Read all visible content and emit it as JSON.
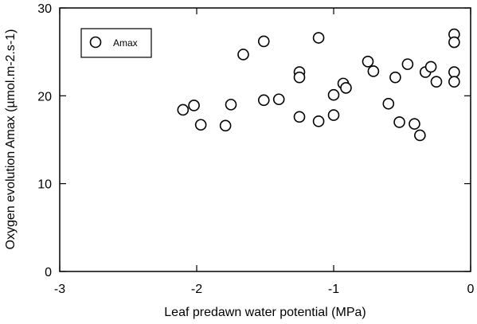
{
  "chart_data": {
    "type": "scatter",
    "xlabel": "Leaf predawn water potential (MPa)",
    "ylabel": "Oxygen evolution Amax (µmol.m-2.s-1)",
    "xlim": [
      -3,
      0
    ],
    "ylim": [
      0,
      30
    ],
    "xticks": [
      -3,
      -2,
      -1,
      0
    ],
    "yticks": [
      0,
      10,
      20,
      30
    ],
    "xtick_labels": [
      "-3",
      "-2",
      "-1",
      "0"
    ],
    "ytick_labels": [
      "0",
      "10",
      "20",
      "30"
    ],
    "grid": false,
    "legend_position": "top-left",
    "marker": "open-circle",
    "colors": {
      "marker_stroke": "#000000",
      "axis": "#000000",
      "background": "#ffffff"
    },
    "series": [
      {
        "name": "Amax",
        "points": [
          [
            -2.1,
            18.4
          ],
          [
            -2.02,
            18.9
          ],
          [
            -1.97,
            16.7
          ],
          [
            -1.79,
            16.6
          ],
          [
            -1.75,
            19.0
          ],
          [
            -1.66,
            24.7
          ],
          [
            -1.51,
            26.2
          ],
          [
            -1.51,
            19.5
          ],
          [
            -1.4,
            19.6
          ],
          [
            -1.25,
            22.7
          ],
          [
            -1.25,
            22.1
          ],
          [
            -1.25,
            17.6
          ],
          [
            -1.11,
            26.6
          ],
          [
            -1.11,
            17.1
          ],
          [
            -1.0,
            17.8
          ],
          [
            -1.0,
            20.1
          ],
          [
            -0.93,
            21.4
          ],
          [
            -0.91,
            20.9
          ],
          [
            -0.75,
            23.9
          ],
          [
            -0.71,
            22.8
          ],
          [
            -0.6,
            19.1
          ],
          [
            -0.55,
            22.1
          ],
          [
            -0.52,
            17.0
          ],
          [
            -0.46,
            23.6
          ],
          [
            -0.41,
            16.8
          ],
          [
            -0.37,
            15.5
          ],
          [
            -0.33,
            22.7
          ],
          [
            -0.29,
            23.3
          ],
          [
            -0.25,
            21.6
          ],
          [
            -0.12,
            27.0
          ],
          [
            -0.12,
            26.1
          ],
          [
            -0.12,
            22.7
          ],
          [
            -0.12,
            21.6
          ]
        ]
      }
    ]
  }
}
